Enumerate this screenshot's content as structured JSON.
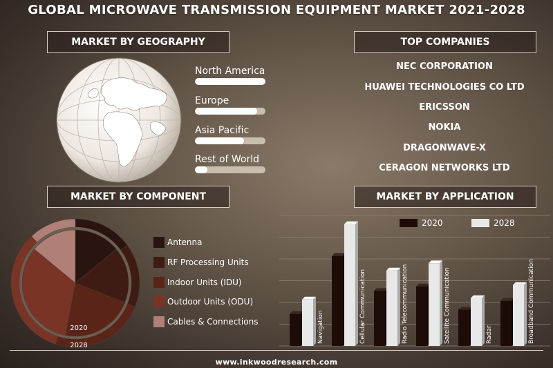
{
  "title": "GLOBAL MICROWAVE TRANSMISSION EQUIPMENT MARKET 2021-2028",
  "sections": {
    "geography": "MARKET BY GEOGRAPHY",
    "companies": "TOP COMPANIES",
    "component": "MARKET BY COMPONENT",
    "application": "MARKET BY APPLICATION"
  },
  "geography": [
    {
      "label": "North America",
      "value": 1.0
    },
    {
      "label": "Europe",
      "value": 0.88
    },
    {
      "label": "Asia Pacific",
      "value": 0.7
    },
    {
      "label": "Rest of World",
      "value": 0.18
    }
  ],
  "companies": [
    "NEC CORPORATION",
    "HUAWEI TECHNOLOGIES CO LTD",
    "ERICSSON",
    "NOKIA",
    "DRAGONWAVE-X",
    "CERAGON NETWORKS LTD"
  ],
  "colors": {
    "antenna": "#2a1410",
    "rf": "#3e1c14",
    "idu": "#5a2419",
    "odu": "#7a3426",
    "cables": "#b08078",
    "bar2020": "#1e0c08",
    "bar2028": "#e8e8e8"
  },
  "footer": "www.inkwoodresearch.com",
  "chart_data": [
    {
      "type": "pie",
      "title": "MARKET BY COMPONENT",
      "series": [
        {
          "name": "2020",
          "categories": [
            "Antenna",
            "RF Processing Units",
            "Indoor Units (IDU)",
            "Outdoor Units (ODU)",
            "Cables & Connections"
          ],
          "values": [
            14,
            17,
            22,
            33,
            14
          ]
        },
        {
          "name": "2028",
          "categories": [
            "Antenna",
            "RF Processing Units",
            "Indoor Units (IDU)",
            "Outdoor Units (ODU)",
            "Cables & Connections"
          ],
          "values": [
            15,
            16,
            24,
            33,
            12
          ]
        }
      ],
      "legend": [
        "Antenna",
        "RF Processing Units",
        "Indoor Units (IDU)",
        "Outdoor Units (ODU)",
        "Cables & Connections"
      ],
      "ring_labels": [
        "2020",
        "2028"
      ]
    },
    {
      "type": "bar",
      "title": "MARKET BY APPLICATION",
      "categories": [
        "Navigation",
        "Cellular Communication",
        "Radio Telecommunication",
        "Satellite Communication",
        "Radar",
        "Broadband Communication"
      ],
      "series": [
        {
          "name": "2020",
          "values": [
            22,
            62,
            38,
            41,
            25,
            31
          ]
        },
        {
          "name": "2028",
          "values": [
            32,
            84,
            52,
            57,
            33,
            42
          ]
        }
      ],
      "ylim": [
        0,
        90
      ],
      "grid": true,
      "legend_position": "top-right"
    }
  ]
}
